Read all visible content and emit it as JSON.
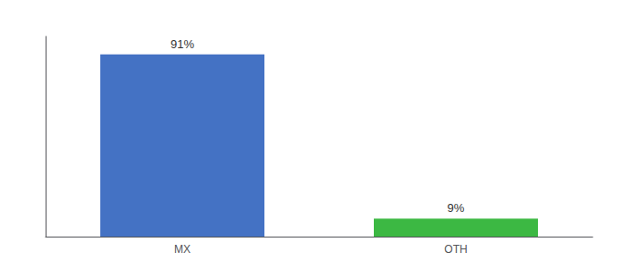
{
  "chart_data": {
    "type": "bar",
    "categories": [
      "MX",
      "OTH"
    ],
    "values": [
      91,
      9
    ],
    "value_labels": [
      "91%",
      "9%"
    ],
    "colors": [
      "#4472c4",
      "#3cb843"
    ],
    "ylim": [
      0,
      100
    ],
    "data_labels": true,
    "tick_labels": "x",
    "grid": false
  }
}
